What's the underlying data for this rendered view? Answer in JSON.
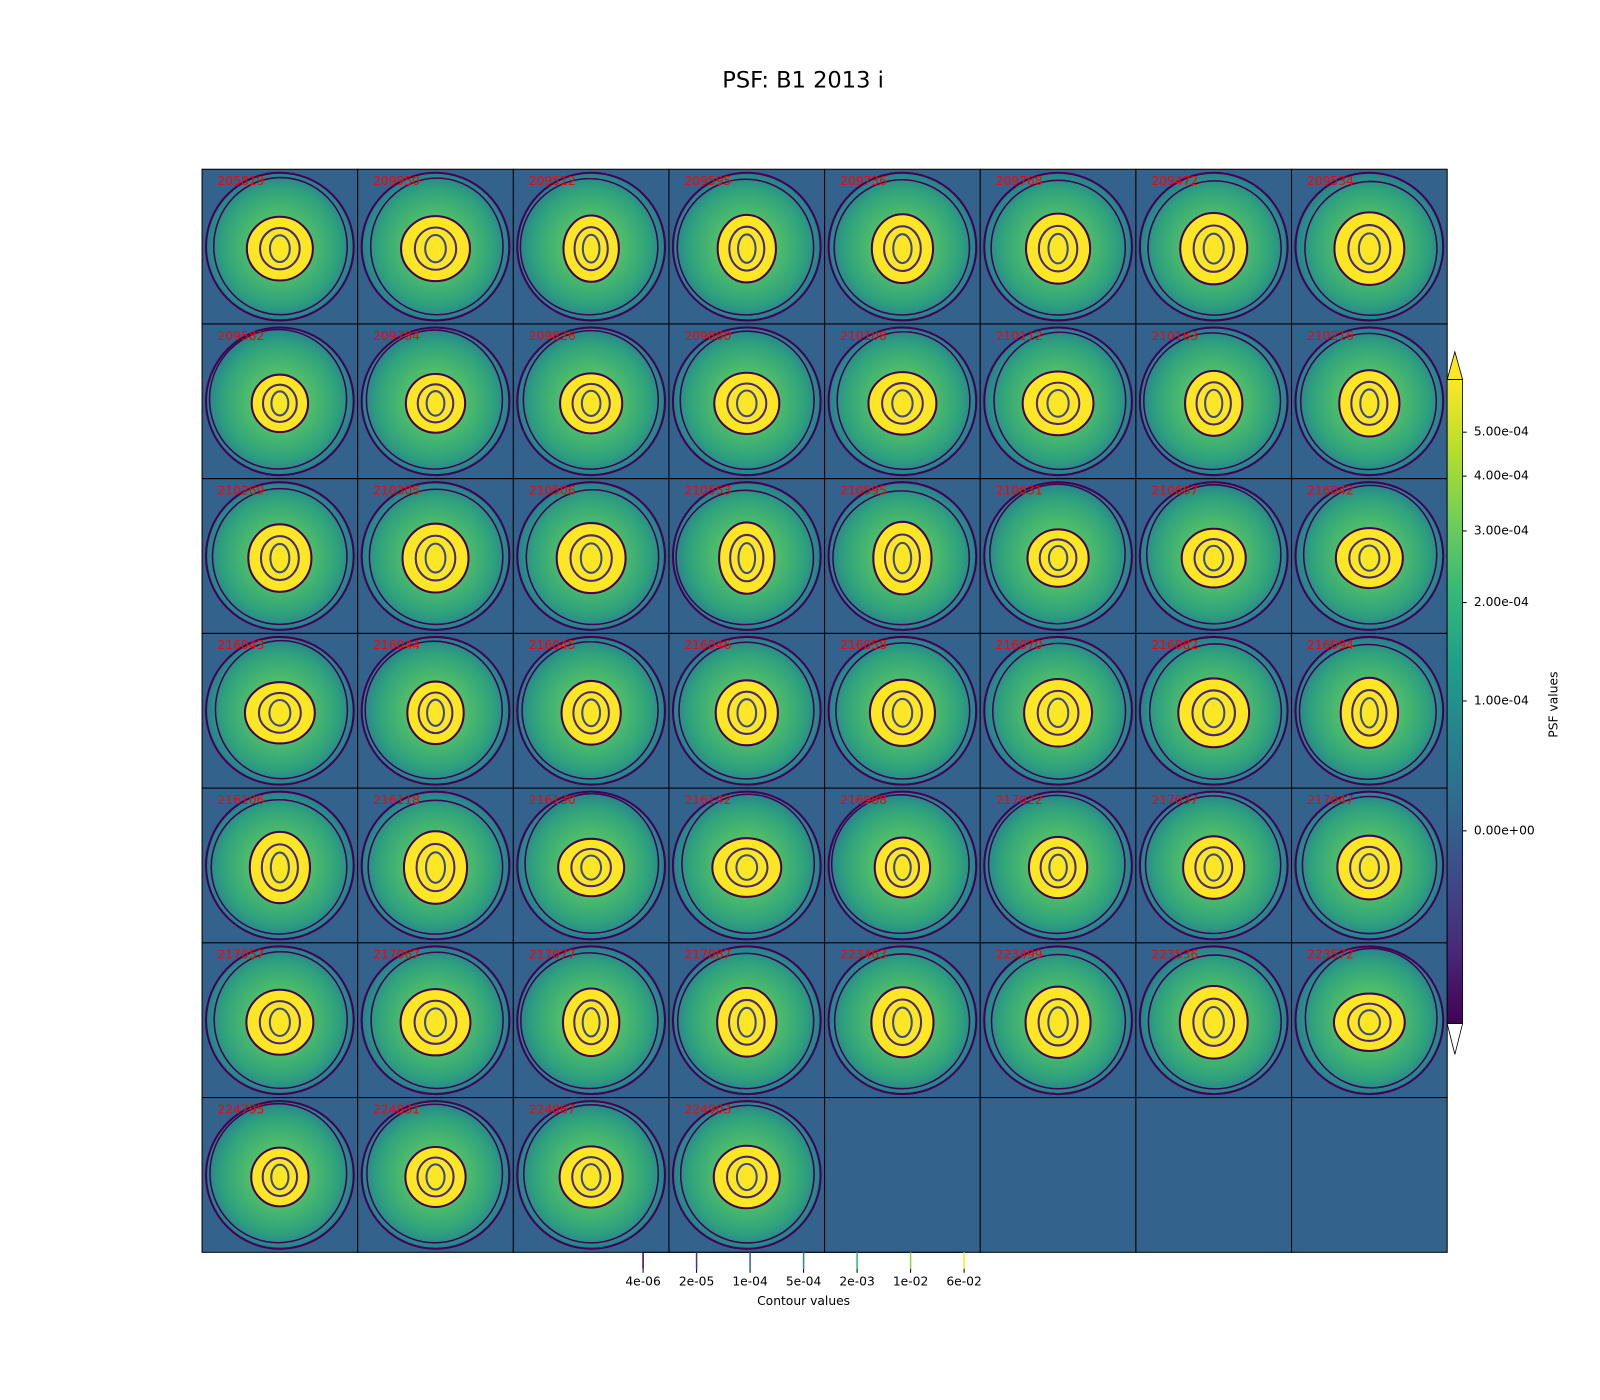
{
  "chart_data": {
    "type": "psf-grid",
    "title": "PSF: B1 2013 i",
    "columns": 8,
    "rows": 7,
    "panels": [
      "205819",
      "209950",
      "209512",
      "209595",
      "209736",
      "209768",
      "209472",
      "209534",
      "209582",
      "209784",
      "209826",
      "209880",
      "210108",
      "210112",
      "210163",
      "210216",
      "210269",
      "210305",
      "210506",
      "210553",
      "210595",
      "210631",
      "210667",
      "216042",
      "216043",
      "216044",
      "216045",
      "216046",
      "216058",
      "216070",
      "216082",
      "216094",
      "216106",
      "216118",
      "216130",
      "216142",
      "216988",
      "217022",
      "217037",
      "217047",
      "217057",
      "217067",
      "217077",
      "217087",
      "223463",
      "223499",
      "223536",
      "223572",
      "224795",
      "224831",
      "224867",
      "224903"
    ],
    "label_color": "#ff0000",
    "background": "#33638d",
    "colorbar": {
      "label": "PSF values",
      "scale": "asinh",
      "linear_width": 0.00015,
      "lim": [
        -0.00016,
        0.00065
      ],
      "extend": "both",
      "ticks": [
        {
          "value": 0,
          "label": "0.00e+00"
        },
        {
          "value": 0.0001,
          "label": "1.00e-04"
        },
        {
          "value": 0.0002,
          "label": "2.00e-04"
        },
        {
          "value": 0.0003,
          "label": "3.00e-04"
        },
        {
          "value": 0.0004,
          "label": "4.00e-04"
        },
        {
          "value": 0.0005,
          "label": "5.00e-04"
        }
      ]
    },
    "contour_bar": {
      "label": "Contour values",
      "scale": "log",
      "lim": [
        4e-06,
        0.0625
      ],
      "ticks": [
        {
          "value": 4e-06,
          "label": "4e-06"
        },
        {
          "value": 2e-05,
          "label": "2e-05"
        },
        {
          "value": 0.0001,
          "label": "1e-04"
        },
        {
          "value": 0.0005,
          "label": "5e-04"
        },
        {
          "value": 0.0025,
          "label": "2e-03"
        },
        {
          "value": 0.0125,
          "label": "1e-02"
        },
        {
          "value": 0.0625,
          "label": "6e-02"
        }
      ]
    }
  }
}
